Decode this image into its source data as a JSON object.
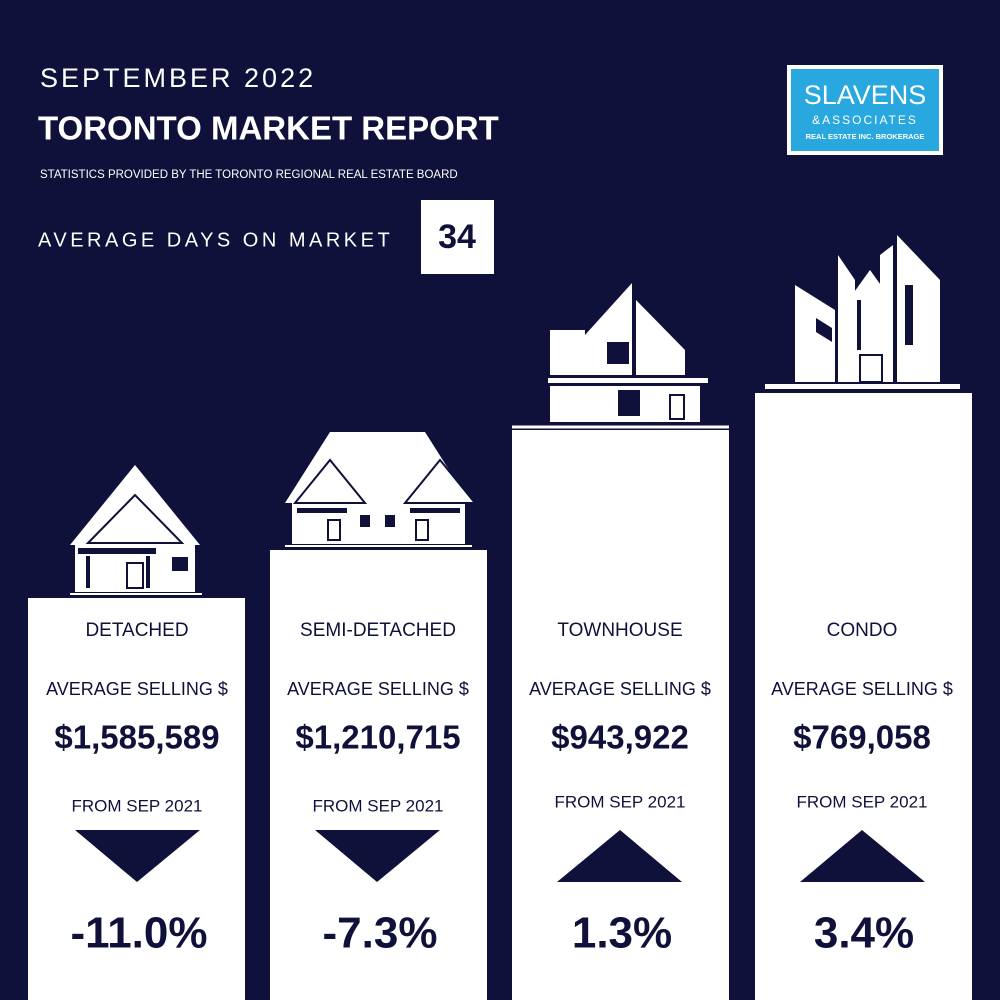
{
  "header": {
    "month": "SEPTEMBER 2022",
    "title": "TORONTO MARKET REPORT",
    "source": "STATISTICS PROVIDED BY THE TORONTO REGIONAL REAL ESTATE BOARD",
    "days_label": "AVERAGE DAYS ON MARKET",
    "days_value": "34"
  },
  "logo": {
    "name": "SLAVENS",
    "sub": "&ASSOCIATES",
    "tagline": "REAL ESTATE INC. BROKERAGE"
  },
  "columns": [
    {
      "type": "DETACHED",
      "price_label": "AVERAGE SELLING $",
      "price": "$1,585,589",
      "change_label": "FROM SEP 2021",
      "change": "-11.0%"
    },
    {
      "type": "SEMI-DETACHED",
      "price_label": "AVERAGE SELLING $",
      "price": "$1,210,715",
      "change_label": "FROM SEP 2021",
      "change": "-7.3%"
    },
    {
      "type": "TOWNHOUSE",
      "price_label": "AVERAGE SELLING $",
      "price": "$943,922",
      "change_label": "FROM SEP 2021",
      "change": "1.3%"
    },
    {
      "type": "CONDO",
      "price_label": "AVERAGE SELLING $",
      "price": "$769,058",
      "change_label": "FROM SEP 2021",
      "change": "3.4%"
    }
  ]
}
